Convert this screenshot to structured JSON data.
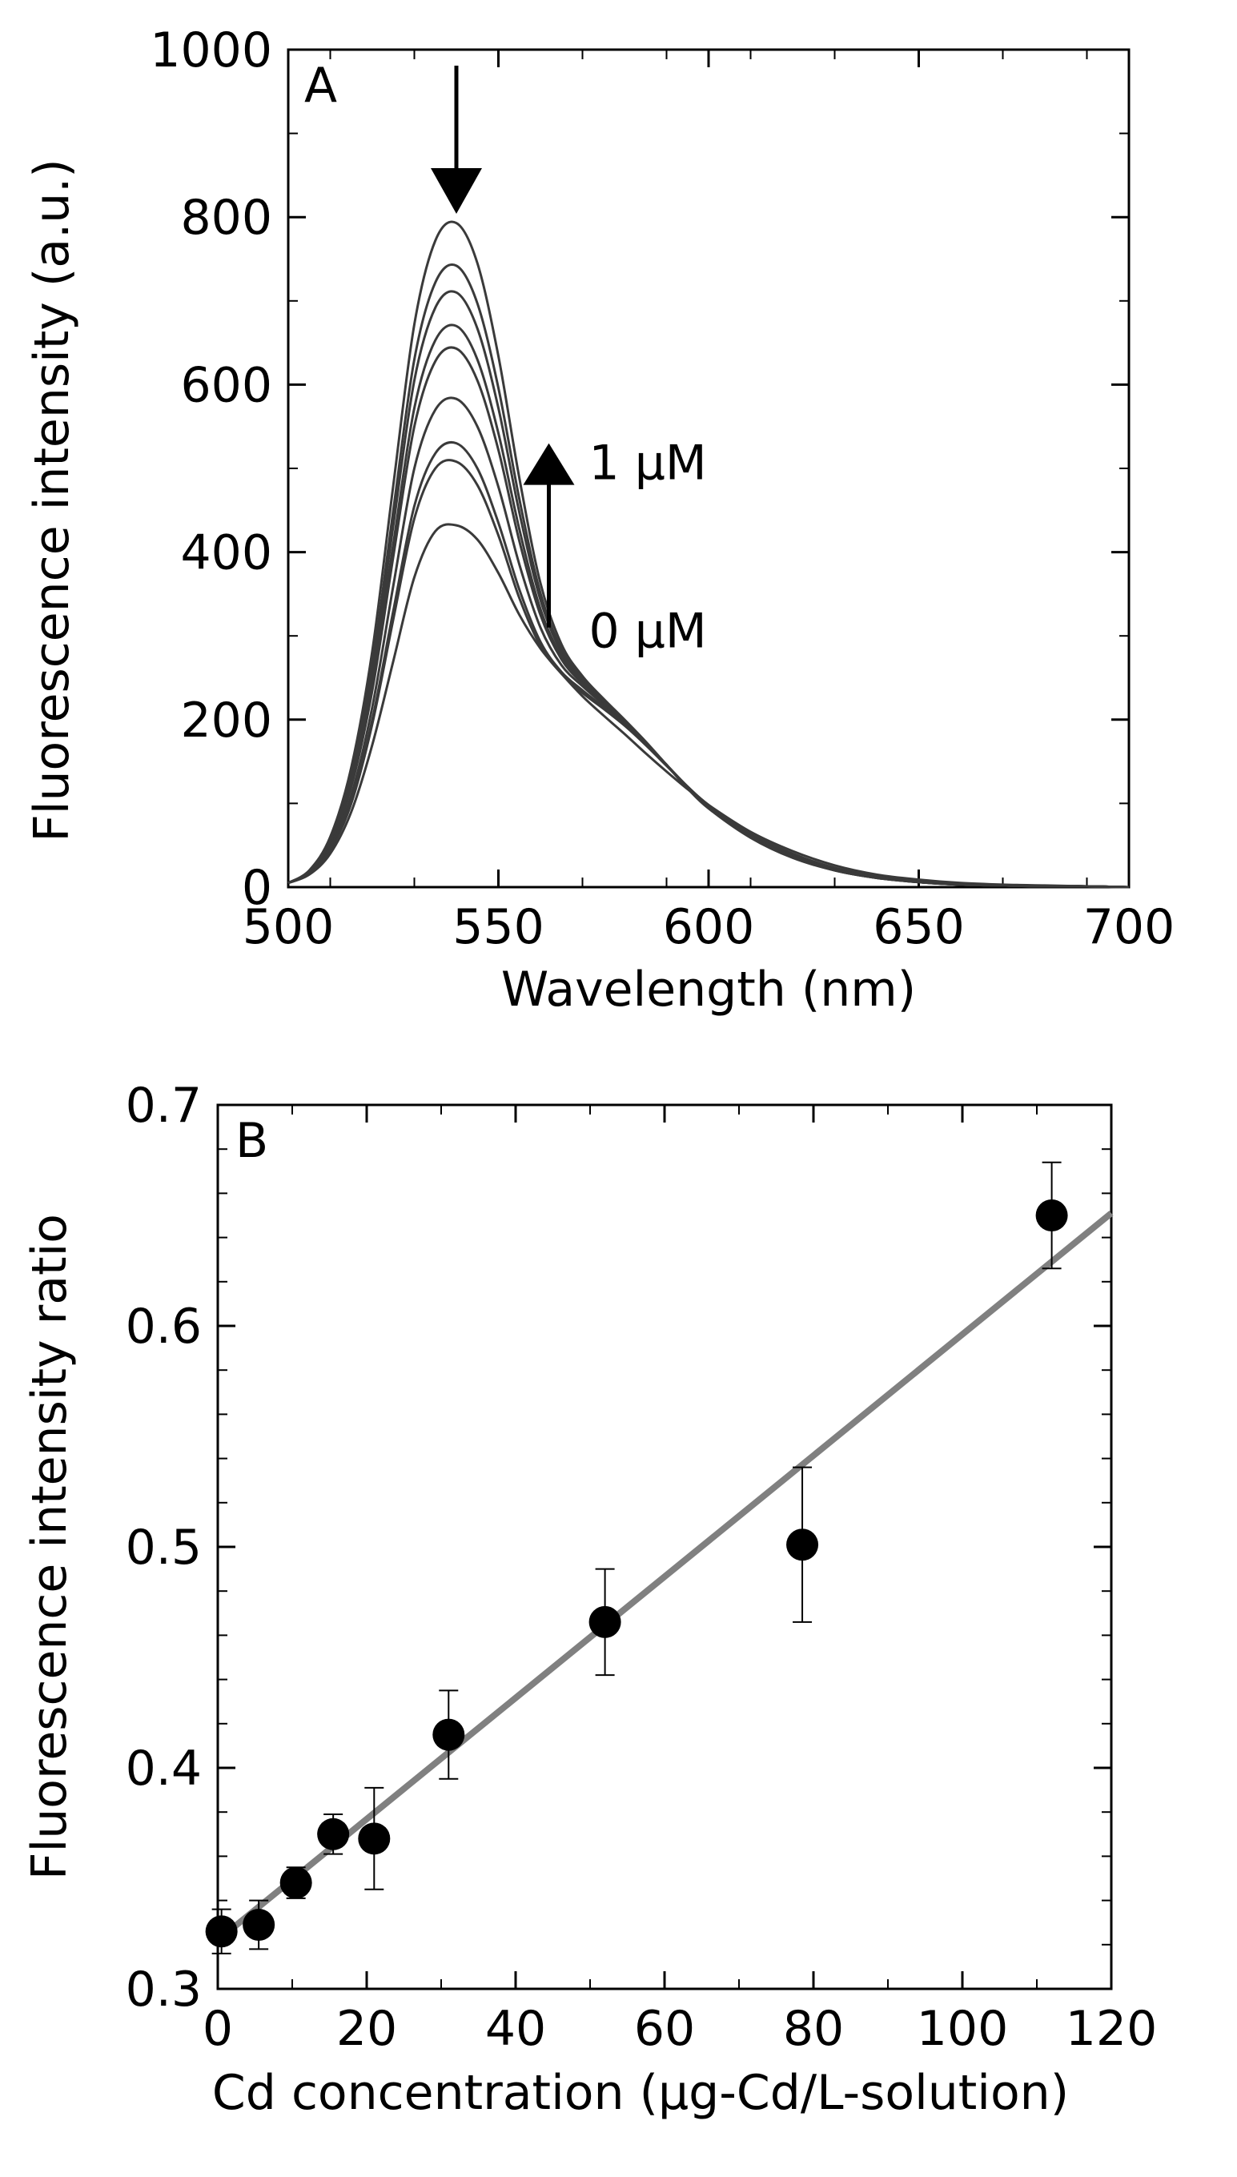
{
  "chart_data": [
    {
      "type": "line",
      "panel_label": "A",
      "xlabel": "Wavelength (nm)",
      "ylabel": "Fluorescence intensity (a.u.)",
      "xlim": [
        500,
        700
      ],
      "ylim": [
        0,
        1000
      ],
      "x_ticks": [
        "500",
        "550",
        "600",
        "650",
        "700"
      ],
      "y_ticks": [
        "0",
        "200",
        "400",
        "600",
        "800",
        "1000"
      ],
      "x": [
        500,
        505,
        510,
        515,
        520,
        525,
        530,
        535,
        540,
        545,
        550,
        555,
        560,
        565,
        570,
        575,
        580,
        585,
        590,
        595,
        600,
        610,
        620,
        630,
        640,
        650,
        660,
        670,
        680,
        690,
        700
      ],
      "series": [
        {
          "values": [
            5,
            15,
            40,
            90,
            170,
            270,
            370,
            425,
            432,
            415,
            375,
            325,
            285,
            255,
            228,
            205,
            183,
            160,
            138,
            117,
            98,
            66,
            43,
            26,
            15,
            9,
            5,
            3,
            2,
            1,
            0
          ]
        },
        {
          "values": [
            5,
            16,
            44,
            100,
            195,
            320,
            440,
            500,
            508,
            480,
            420,
            345,
            288,
            255,
            232,
            213,
            193,
            170,
            145,
            120,
            98,
            64,
            40,
            23,
            13,
            7,
            4,
            2,
            1,
            1,
            0
          ]
        },
        {
          "values": [
            5,
            16,
            45,
            103,
            200,
            330,
            455,
            518,
            530,
            500,
            435,
            355,
            293,
            257,
            235,
            215,
            194,
            170,
            145,
            120,
            98,
            63,
            39,
            23,
            13,
            7,
            4,
            2,
            1,
            1,
            0
          ]
        },
        {
          "values": [
            5,
            17,
            48,
            110,
            215,
            360,
            500,
            570,
            583,
            550,
            478,
            385,
            310,
            265,
            240,
            218,
            196,
            172,
            146,
            120,
            97,
            62,
            38,
            22,
            12,
            7,
            4,
            2,
            1,
            1,
            0
          ]
        },
        {
          "values": [
            5,
            18,
            52,
            120,
            235,
            395,
            550,
            628,
            643,
            605,
            522,
            413,
            325,
            272,
            243,
            220,
            197,
            172,
            146,
            119,
            96,
            61,
            37,
            21,
            12,
            6,
            3,
            2,
            1,
            1,
            0
          ]
        },
        {
          "values": [
            5,
            18,
            53,
            124,
            243,
            410,
            572,
            653,
            670,
            630,
            542,
            427,
            332,
            275,
            245,
            221,
            198,
            173,
            146,
            119,
            96,
            61,
            37,
            21,
            12,
            6,
            3,
            2,
            1,
            1,
            0
          ]
        },
        {
          "values": [
            5,
            19,
            55,
            130,
            255,
            432,
            605,
            692,
            710,
            667,
            572,
            447,
            343,
            280,
            247,
            222,
            198,
            173,
            146,
            118,
            95,
            60,
            36,
            20,
            11,
            6,
            3,
            2,
            1,
            1,
            0
          ]
        },
        {
          "values": [
            5,
            19,
            57,
            135,
            265,
            450,
            630,
            722,
            742,
            697,
            596,
            463,
            351,
            284,
            249,
            223,
            199,
            173,
            146,
            118,
            95,
            60,
            36,
            20,
            11,
            6,
            3,
            2,
            1,
            1,
            0
          ]
        },
        {
          "values": [
            5,
            20,
            60,
            143,
            282,
            480,
            672,
            772,
            793,
            745,
            634,
            488,
            363,
            290,
            252,
            225,
            200,
            174,
            146,
            118,
            94,
            59,
            35,
            20,
            11,
            6,
            3,
            2,
            1,
            1,
            0
          ]
        }
      ],
      "annotations": {
        "upper": "1  μM",
        "lower": "0  μM",
        "peak_arrow_wavelength": 540,
        "concentration_arrow_wavelength": 562,
        "concentration_arrow_from": 310,
        "concentration_arrow_to": 530
      }
    },
    {
      "type": "scatter",
      "panel_label": "B",
      "xlabel": "Cd concentration (μg-Cd/L-solution)",
      "ylabel": "Fluorescence intensity ratio",
      "xlim": [
        0,
        120
      ],
      "ylim": [
        0.3,
        0.7
      ],
      "x_ticks": [
        "0",
        "20",
        "40",
        "60",
        "80",
        "100",
        "120"
      ],
      "y_ticks": [
        "0.3",
        "0.4",
        "0.5",
        "0.6",
        "0.7"
      ],
      "x": [
        0.5,
        5.5,
        10.5,
        15.5,
        21,
        31,
        52,
        78.5,
        112
      ],
      "y": [
        0.326,
        0.329,
        0.348,
        0.37,
        0.368,
        0.415,
        0.466,
        0.501,
        0.65
      ],
      "y_err": [
        0.01,
        0.011,
        0.007,
        0.009,
        0.023,
        0.02,
        0.024,
        0.035,
        0.024
      ],
      "fit_line": {
        "x": [
          0,
          120
        ],
        "y": [
          0.322,
          0.651
        ],
        "color": "#808080"
      }
    }
  ]
}
